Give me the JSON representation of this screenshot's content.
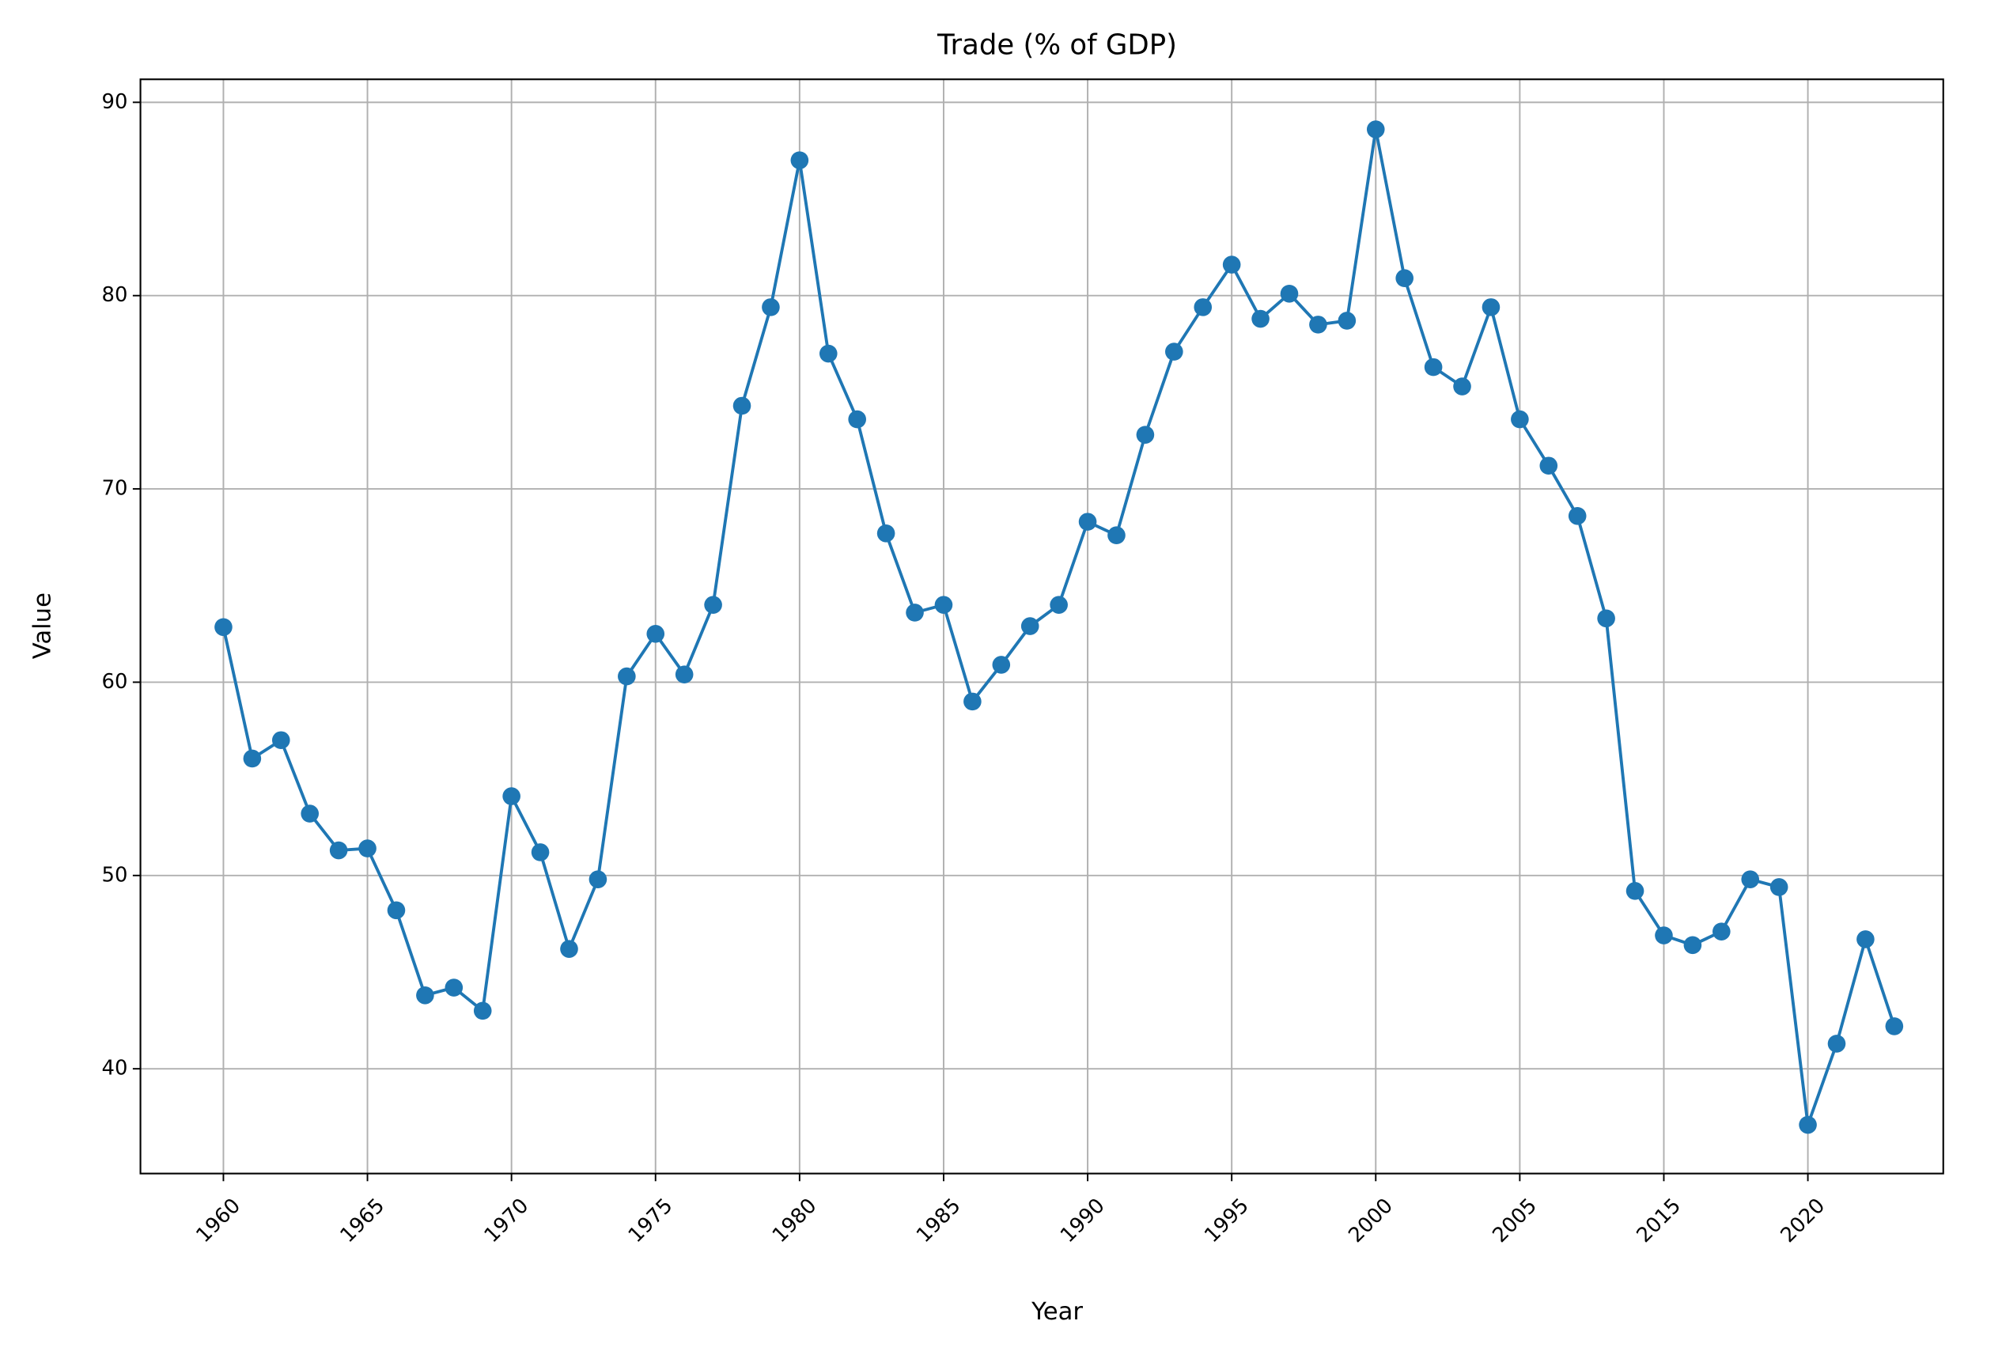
{
  "chart_data": {
    "type": "line",
    "title": "Trade (% of GDP)",
    "x_label": "Year",
    "y_label": "Value",
    "categories": [
      "1960",
      null,
      null,
      null,
      null,
      "1965",
      null,
      null,
      null,
      null,
      "1970",
      null,
      null,
      null,
      null,
      "1975",
      null,
      null,
      null,
      null,
      "1980",
      null,
      null,
      null,
      null,
      "1985",
      null,
      null,
      null,
      null,
      "1990",
      null,
      null,
      null,
      null,
      "1995",
      null,
      null,
      null,
      null,
      "2000",
      null,
      null,
      null,
      null,
      "2005",
      null,
      null,
      null,
      null,
      "2015",
      null,
      null,
      null,
      null,
      "2020",
      null,
      null,
      null
    ],
    "series": [
      {
        "name": "Trade (% of GDP)",
        "color": "#1f77b4",
        "values": [
          62.85,
          56.05,
          57.0,
          53.2,
          51.3,
          51.4,
          48.2,
          43.8,
          44.2,
          43.0,
          54.1,
          51.2,
          46.2,
          49.8,
          60.3,
          62.5,
          60.4,
          64.0,
          74.3,
          79.4,
          87.0,
          77.0,
          73.6,
          67.7,
          63.6,
          64.0,
          59.0,
          60.9,
          62.9,
          64.0,
          68.3,
          67.6,
          72.8,
          77.1,
          79.4,
          81.6,
          78.8,
          80.1,
          78.5,
          78.7,
          88.6,
          80.9,
          76.3,
          75.3,
          79.4,
          73.6,
          71.2,
          68.6,
          63.3,
          49.2,
          46.9,
          46.4,
          47.1,
          49.8,
          49.4,
          37.1,
          41.3,
          46.7,
          42.2
        ]
      }
    ],
    "ylim": [
      34.58,
      91.19
    ],
    "yticks": [
      40,
      50,
      60,
      70,
      80,
      90
    ],
    "grid": true
  }
}
